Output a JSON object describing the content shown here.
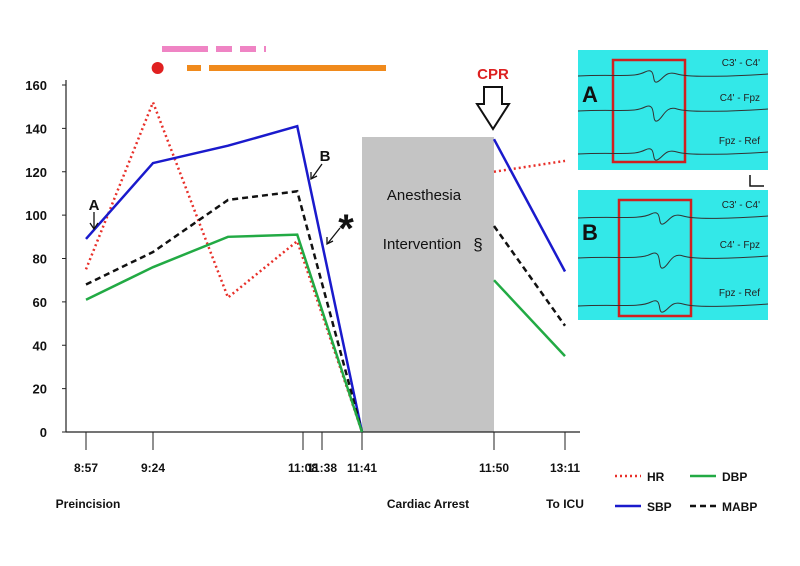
{
  "chart_data": {
    "type": "line",
    "y_ticks": [
      0,
      20,
      40,
      60,
      80,
      100,
      120,
      140,
      160
    ],
    "ylim": [
      0,
      160
    ],
    "x_ticks": [
      {
        "label": "8:57",
        "t": 0
      },
      {
        "label": "9:24",
        "t": 1
      },
      {
        "label": "11:08",
        "t": 3.3
      },
      {
        "label": "11:38",
        "t": 3.6
      },
      {
        "label": "11:41",
        "t": 4
      },
      {
        "label": "11:50",
        "t": 6
      },
      {
        "label": "13:11",
        "t": 7
      }
    ],
    "x_minor_tick": 3.6,
    "phase_labels": [
      {
        "text": "Preincision",
        "t": 0
      },
      {
        "text": "Cardiac Arrest",
        "t": 5
      },
      {
        "text": "To ICU",
        "t": 7
      }
    ],
    "series": [
      {
        "name": "HR",
        "color": "#e8302a",
        "style": "dotted",
        "points": [
          [
            0,
            75
          ],
          [
            1,
            152
          ],
          [
            2,
            62
          ],
          [
            3.2,
            88
          ],
          [
            4,
            0
          ],
          [
            6,
            120
          ],
          [
            7,
            125
          ]
        ]
      },
      {
        "name": "SBP",
        "color": "#1a1acc",
        "style": "solid",
        "points": [
          [
            0,
            89
          ],
          [
            1,
            124
          ],
          [
            2,
            132
          ],
          [
            3.2,
            141
          ],
          [
            4,
            0
          ],
          [
            6,
            135
          ],
          [
            7,
            74
          ]
        ]
      },
      {
        "name": "MABP",
        "color": "#111111",
        "style": "dashed",
        "points": [
          [
            0,
            68
          ],
          [
            1,
            83
          ],
          [
            2,
            107
          ],
          [
            3.2,
            111
          ],
          [
            4,
            0
          ],
          [
            6,
            95
          ],
          [
            7,
            49
          ]
        ]
      },
      {
        "name": "DBP",
        "color": "#22aa44",
        "style": "solid",
        "points": [
          [
            0,
            61
          ],
          [
            1,
            76
          ],
          [
            2,
            90
          ],
          [
            3.2,
            91
          ],
          [
            4,
            0
          ],
          [
            6,
            70
          ],
          [
            7,
            35
          ]
        ]
      }
    ],
    "shaded_region": {
      "t_start": 4,
      "t_end": 6,
      "color": "#c4c4c4",
      "text_line1": "Anesthesia",
      "text_line2": "Intervention",
      "symbol": "§"
    },
    "annotations": [
      {
        "id": "A",
        "text": "A",
        "t": 0,
        "y": 95
      },
      {
        "id": "B",
        "text": "B",
        "t": 3.4,
        "y": 120
      },
      {
        "id": "star",
        "text": "*",
        "t": 3.8,
        "y": 96
      },
      {
        "id": "cpr",
        "text": "CPR",
        "t": 6,
        "y": 170,
        "color": "#dd2020"
      }
    ],
    "top_bars": [
      {
        "color": "#ef84c4",
        "style": "dashed",
        "t_start": 0.8,
        "t_end": 2.6,
        "level": 2
      },
      {
        "color": "#e02020",
        "style": "dot",
        "t_start": 0.95,
        "t_end": 0.95,
        "level": 1
      },
      {
        "color": "#f08a1c",
        "style": "solid",
        "t_start": 1.5,
        "t_end": 4.4,
        "level": 1
      }
    ],
    "legend": {
      "placement": "bottom-right",
      "items": [
        {
          "name": "HR",
          "color": "#e8302a",
          "style": "dotted"
        },
        {
          "name": "DBP",
          "color": "#22aa44",
          "style": "solid"
        },
        {
          "name": "SBP",
          "color": "#1a1acc",
          "style": "solid"
        },
        {
          "name": "MABP",
          "color": "#111111",
          "style": "dashed"
        }
      ]
    },
    "insets": [
      {
        "label": "A",
        "channels": [
          "C3' - C4'",
          "C4' - Fpz",
          "Fpz - Ref"
        ],
        "background": "#33e8e8",
        "box_color": "#d02020"
      },
      {
        "label": "B",
        "channels": [
          "C3' - C4'",
          "C4' - Fpz",
          "Fpz - Ref"
        ],
        "background": "#33e8e8",
        "box_color": "#d02020"
      }
    ]
  }
}
